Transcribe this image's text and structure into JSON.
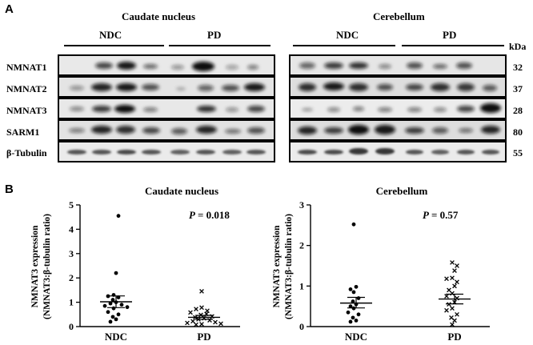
{
  "panelA": {
    "letter": "A",
    "caudate_title": "Caudate nucleus",
    "cerebellum_title": "Cerebellum",
    "groups": {
      "ndc": "NDC",
      "pd": "PD"
    },
    "kda_label": "kDa",
    "rows": [
      {
        "protein": "NMNAT1",
        "kda": "32"
      },
      {
        "protein": "NMNAT2",
        "kda": "37"
      },
      {
        "protein": "NMNAT3",
        "kda": "28"
      },
      {
        "protein": "SARM1",
        "kda": "80"
      },
      {
        "protein": "β-Tubulin",
        "kda": "55"
      }
    ]
  },
  "panelB": {
    "letter": "B",
    "ylabel_line1": "NMNAT3 expression",
    "ylabel_line2": "(NMNAT3:β-tubulin ratio)",
    "p_symbol": "P"
  },
  "chart_data": [
    {
      "type": "scatter",
      "title": "Caudate nucleus",
      "categories": [
        "NDC",
        "PD"
      ],
      "ylabel": "NMNAT3 expression (NMNAT3:β-tubulin ratio)",
      "ylim": [
        0,
        5
      ],
      "yticks": [
        "0",
        "1",
        "2",
        "3",
        "4",
        "5"
      ],
      "annotation": "= 0.018",
      "series": [
        {
          "marker": "dot",
          "mean": 1.02,
          "sem_low": 0.78,
          "sem_high": 1.26,
          "values": [
            4.55,
            2.2,
            1.3,
            1.25,
            1.2,
            1.1,
            1.0,
            0.95,
            0.9,
            0.85,
            0.8,
            0.75,
            0.6,
            0.5,
            0.4,
            0.3,
            0.2
          ]
        },
        {
          "marker": "cross",
          "mean": 0.38,
          "sem_low": 0.3,
          "sem_high": 0.46,
          "values": [
            1.45,
            0.78,
            0.72,
            0.65,
            0.58,
            0.52,
            0.48,
            0.42,
            0.38,
            0.34,
            0.3,
            0.26,
            0.22,
            0.18,
            0.15,
            0.12,
            0.1,
            0.08
          ]
        }
      ]
    },
    {
      "type": "scatter",
      "title": "Cerebellum",
      "categories": [
        "NDC",
        "PD"
      ],
      "ylabel": "NMNAT3 expression (NMNAT3:β-tubulin ratio)",
      "ylim": [
        0,
        3
      ],
      "yticks": [
        "0",
        "1",
        "2",
        "3"
      ],
      "annotation": "= 0.57",
      "series": [
        {
          "marker": "dot",
          "mean": 0.58,
          "sem_low": 0.46,
          "sem_high": 0.72,
          "values": [
            2.52,
            0.98,
            0.92,
            0.85,
            0.7,
            0.62,
            0.55,
            0.5,
            0.45,
            0.35,
            0.3,
            0.22,
            0.15,
            0.12
          ]
        },
        {
          "marker": "cross",
          "mean": 0.68,
          "sem_low": 0.56,
          "sem_high": 0.8,
          "values": [
            1.58,
            1.5,
            1.38,
            1.2,
            1.18,
            1.1,
            1.0,
            0.9,
            0.82,
            0.75,
            0.7,
            0.6,
            0.55,
            0.45,
            0.4,
            0.3,
            0.22,
            0.15,
            0.05
          ]
        }
      ]
    }
  ]
}
